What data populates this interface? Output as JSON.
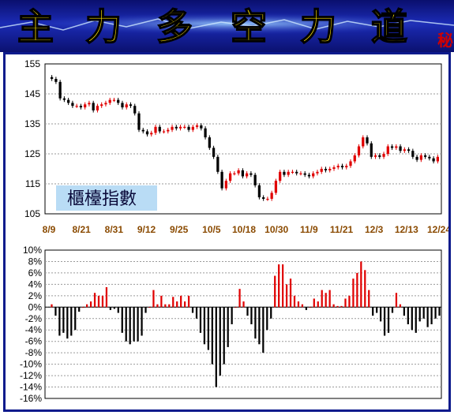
{
  "banner": {
    "chars": [
      "主",
      "力",
      "多",
      "空",
      "力",
      "道"
    ],
    "suffix": "秘",
    "text_color": "#ffe400",
    "background_color": "#1b2bb5"
  },
  "chart_data": [
    {
      "type": "candlestick",
      "title": "櫃檯指數",
      "ylim": [
        105,
        155
      ],
      "yticks": [
        105,
        115,
        125,
        135,
        145,
        155
      ],
      "x_tick_labels": [
        "8/9",
        "8/21",
        "8/31",
        "9/12",
        "9/25",
        "10/5",
        "10/18",
        "10/30",
        "11/9",
        "11/21",
        "12/3",
        "12/13",
        "12/24"
      ],
      "grid": true,
      "up_color": "#e00000",
      "down_color": "#000000",
      "close": [
        150,
        149,
        143.5,
        143,
        142,
        141,
        141,
        140.5,
        141.5,
        142,
        139.5,
        141,
        141.5,
        142,
        143,
        143,
        142,
        140.5,
        141.5,
        141,
        138.5,
        133,
        132.5,
        131.5,
        132,
        134,
        132.5,
        132.5,
        133,
        134,
        133.5,
        134,
        134,
        133,
        134,
        134.5,
        133.5,
        130.5,
        127,
        124,
        119,
        113.5,
        116,
        118.5,
        118.5,
        119.5,
        117.5,
        118.5,
        118,
        114.5,
        110.5,
        110,
        110,
        112,
        116,
        119,
        118,
        119,
        119,
        118.5,
        118.5,
        118,
        117.5,
        118.5,
        119,
        120,
        119.5,
        120,
        120.5,
        121,
        120.5,
        121,
        122.5,
        124.5,
        127.5,
        130.5,
        128.5,
        124,
        124.5,
        124,
        125,
        127.5,
        127,
        127.5,
        126,
        126.5,
        126,
        124,
        123,
        124.5,
        124,
        123.5,
        122.5,
        124
      ]
    },
    {
      "type": "bar",
      "ylim": [
        -16,
        10
      ],
      "yticks": [
        -16,
        -14,
        -12,
        -10,
        -8,
        -6,
        -4,
        -2,
        0,
        2,
        4,
        6,
        8,
        10
      ],
      "ytick_format": "percent",
      "grid": true,
      "positive_color": "#e00000",
      "negative_color": "#000000",
      "values": [
        0.5,
        -1.5,
        -5,
        -4.5,
        -5.5,
        -5,
        -4,
        -0.8,
        0,
        0.5,
        1,
        2.5,
        2,
        2,
        3.5,
        -0.5,
        -0.3,
        -1,
        -4.5,
        -6,
        -6.5,
        -6,
        -6,
        -5,
        -1,
        0,
        3,
        0.5,
        2,
        0.5,
        0.5,
        1.8,
        1,
        2,
        1,
        2,
        -1,
        -2,
        -4.5,
        -6.5,
        -7.5,
        -10,
        -14,
        -12,
        -10,
        -7,
        -3,
        0,
        3.2,
        1,
        -1.5,
        -3,
        -5.5,
        -6.5,
        -8,
        -4,
        -2,
        5.5,
        7.5,
        7.5,
        4,
        5,
        2,
        1,
        0.5,
        -0.5,
        0,
        1.5,
        1,
        3,
        2.5,
        3,
        0.5,
        0.2,
        0.2,
        1.5,
        2,
        5,
        6,
        8,
        6.5,
        3,
        -1.5,
        -1,
        -2.5,
        -5,
        -4.5,
        -1,
        2.5,
        0.5,
        -1.5,
        -3,
        -4,
        -4.5,
        -2.5,
        -2,
        -3.5,
        -3,
        -2,
        -1.5
      ]
    }
  ]
}
